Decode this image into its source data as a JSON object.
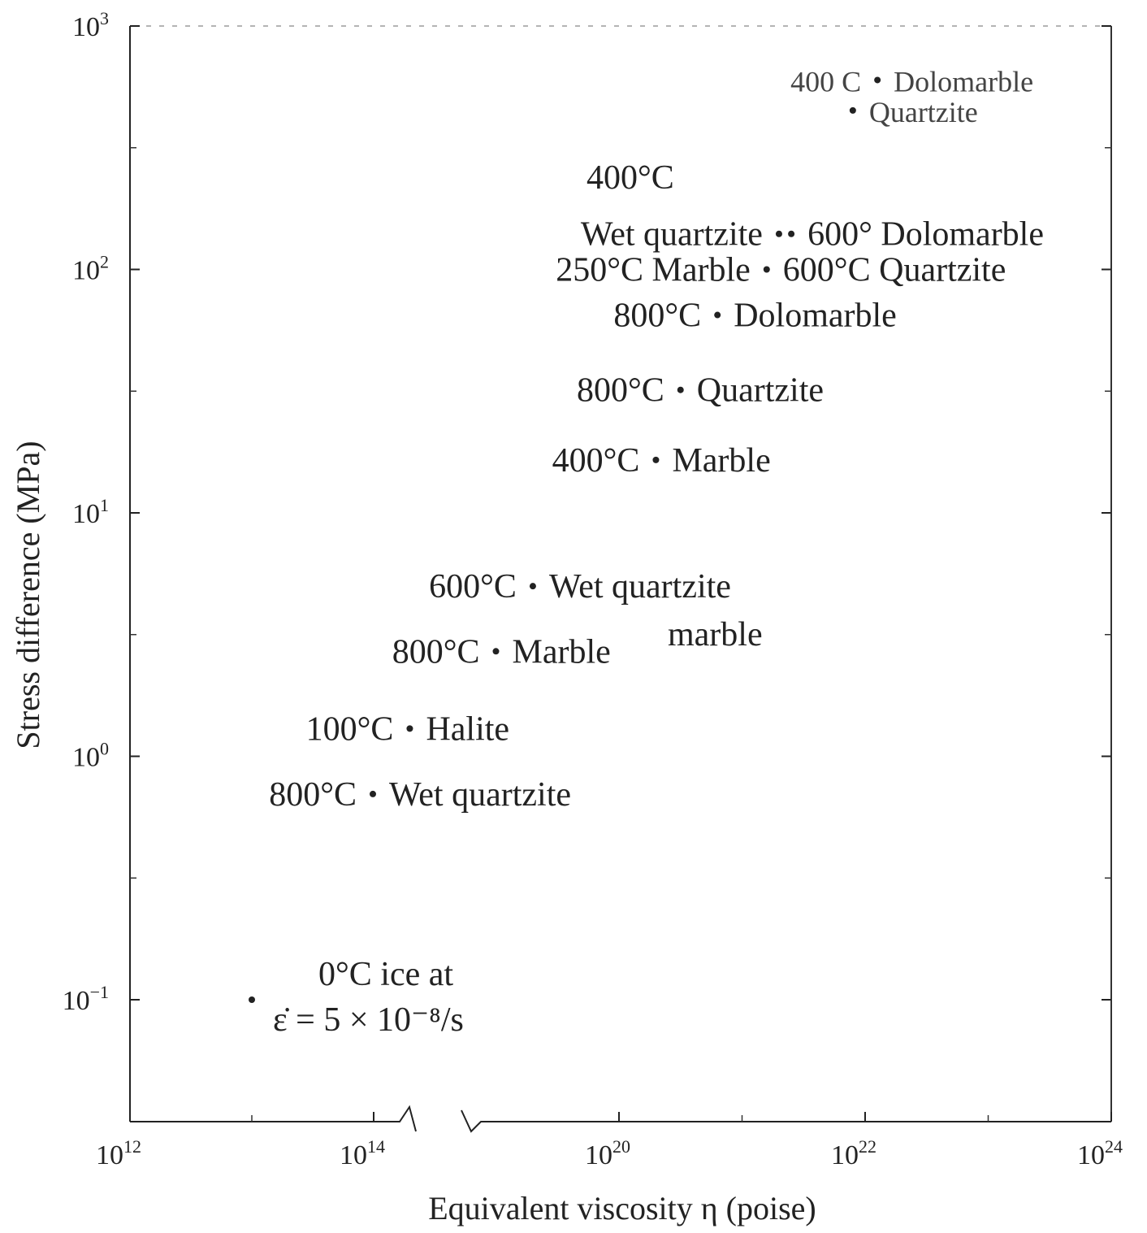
{
  "chart_data": {
    "type": "scatter",
    "title": "",
    "xlabel": "Equivalent viscosity η (poise)",
    "ylabel": "Stress difference (MPa)",
    "x_scale": "log (broken axis)",
    "y_scale": "log",
    "x_ticks": [
      {
        "exp": 12,
        "label": "10",
        "sup": "12"
      },
      {
        "exp": 14,
        "label": "10",
        "sup": "14"
      },
      {
        "exp": 20,
        "label": "10",
        "sup": "20"
      },
      {
        "exp": 22,
        "label": "10",
        "sup": "22"
      },
      {
        "exp": 24,
        "label": "10",
        "sup": "24"
      }
    ],
    "x_axis_break": "between 10^14 and 10^20",
    "y_ticks": [
      {
        "exp": 3,
        "label": "10",
        "sup": "3"
      },
      {
        "exp": 2,
        "label": "10",
        "sup": "2"
      },
      {
        "exp": 1,
        "label": "10",
        "sup": "1"
      },
      {
        "exp": 0,
        "label": "10",
        "sup": "0"
      },
      {
        "exp": -1,
        "label": "10",
        "sup": "−1"
      }
    ],
    "ylim": [
      0.03,
      1000
    ],
    "points": [
      {
        "left": "400 C",
        "right": "Dolomarble",
        "x_exp": 22.1,
        "y": 600
      },
      {
        "left": "",
        "right": "Quartzite",
        "x_exp": 21.9,
        "y": 450
      },
      {
        "left": "Wet quartzite",
        "right": "",
        "x_exp": 21.3,
        "y": 140
      },
      {
        "left": "",
        "right": "600° Dolomarble",
        "x_exp": 21.4,
        "y": 140
      },
      {
        "left": "250°C Marble",
        "right": "600°C Quartzite",
        "x_exp": 21.2,
        "y": 100
      },
      {
        "left": "800°C",
        "right": "Dolomarble",
        "x_exp": 20.8,
        "y": 65
      },
      {
        "left": "800°C",
        "right": "Quartzite",
        "x_exp": 20.5,
        "y": 32
      },
      {
        "left": "400°C",
        "right": "Marble",
        "x_exp": 20.3,
        "y": 16.5
      },
      {
        "left": "600°C",
        "right": "Wet quartzite",
        "x_exp": 19.3,
        "y": 5
      },
      {
        "left": "800°C",
        "right": "Marble",
        "x_exp": 19.0,
        "y": 2.7
      },
      {
        "left": "100°C",
        "right": "Halite",
        "x_exp": 18.3,
        "y": 1.3
      },
      {
        "left": "800°C",
        "right": "Wet quartzite",
        "x_exp": 18.0,
        "y": 0.7
      },
      {
        "left": "",
        "right": "",
        "x_exp": 13.0,
        "y": 0.1
      }
    ],
    "annotations": {
      "a400": "400°C",
      "marble": "marble",
      "ice_line1": "0°C ice at",
      "ice_line2": "ε̇ = 5 × 10⁻⁸/s"
    },
    "grid": false,
    "legend": "none"
  }
}
